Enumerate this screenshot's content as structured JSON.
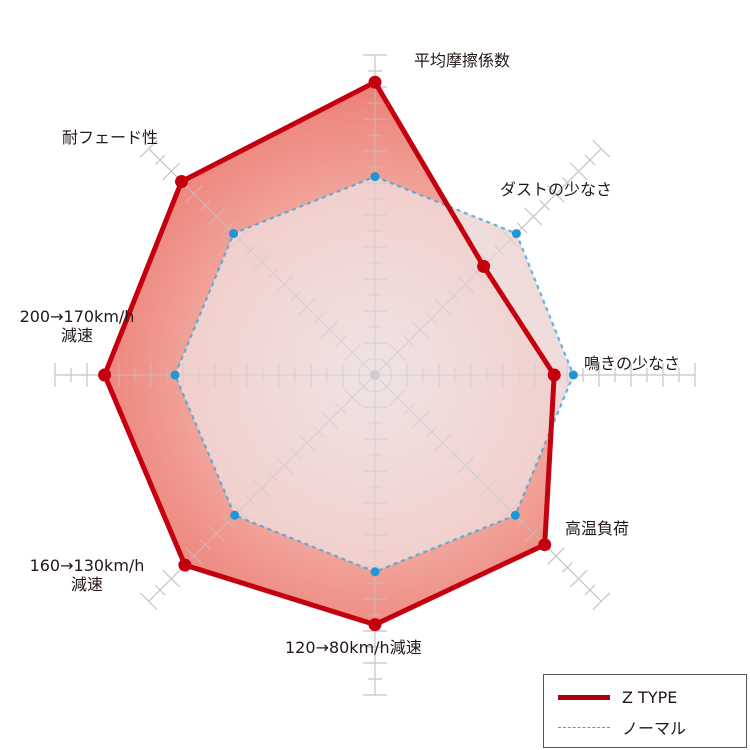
{
  "chart_data": {
    "type": "radar",
    "title": "",
    "scale": {
      "min": 0,
      "max": 20,
      "ticks": 20,
      "grid": "axis-ticks"
    },
    "axes": [
      "平均摩擦係数",
      "ダストの少なさ",
      "鳴きの少なさ",
      "高温負荷",
      "120→80km/h減速",
      "160→130km/h減速",
      "200→170km/h減速",
      "耐フェード性"
    ],
    "series": [
      {
        "name": "Z TYPE",
        "color": "#c4000f",
        "style": "solid",
        "values": [
          18.3,
          9.6,
          11.2,
          15.0,
          15.6,
          16.8,
          16.9,
          17.1
        ]
      },
      {
        "name": "ノーマル",
        "color": "#3aa8dc",
        "style": "dashed",
        "values": [
          12.4,
          12.5,
          12.4,
          12.4,
          12.3,
          12.4,
          12.5,
          12.5
        ]
      }
    ],
    "legend_position": "bottom-right"
  },
  "labels": {
    "top": "平均摩擦係数",
    "upper_right": "ダストの少なさ",
    "right": "鳴きの少なさ",
    "lower_right": "高温負荷",
    "bottom": "120→80km/h減速",
    "lower_left_1": "160→130km/h",
    "lower_left_2": "減速",
    "left_1": "200→170km/h",
    "left_2": "減速",
    "upper_left": "耐フェード性"
  },
  "legend": {
    "z_type": "Z TYPE",
    "normal": "ノーマル"
  }
}
